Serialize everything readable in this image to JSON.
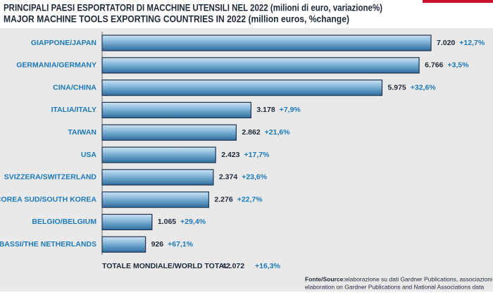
{
  "chart_data": {
    "type": "hbar",
    "title": "PRINCIPALI PAESI ESPORTATORI DI MACCHINE UTENSILI NEL 2022 (milioni di euro, variazione%)",
    "subtitle": "MAJOR MACHINE TOOLS EXPORTING COUNTRIES IN 2022 (million euros, %change)",
    "categories": [
      "GIAPPONE/JAPAN",
      "GERMANIA/GERMANY",
      "CINA/CHINA",
      "ITALIA/ITALY",
      "TAIWAN",
      "USA",
      "SVIZZERA/SWITZERLAND",
      "COREA SUD/SOUTH KOREA",
      "BELGIO/BELGIUM",
      "PAESI BASSI/THE NETHERLANDS"
    ],
    "values": [
      7020,
      6766,
      5975,
      3178,
      2862,
      2423,
      2374,
      2276,
      1065,
      926
    ],
    "value_labels": [
      "7.020",
      "6.766",
      "5.975",
      "3.178",
      "2.862",
      "2.423",
      "2.374",
      "2.276",
      "1.065",
      "926"
    ],
    "change_labels": [
      "+12,7%",
      "+3,5%",
      "+32,6%",
      "+7,9%",
      "+21,6%",
      "+17,7%",
      "+23,6%",
      "+22,7%",
      "+29,4%",
      "+67,1%"
    ],
    "color": "#5b9bc8",
    "total": {
      "label": "TOTALE MONDIALE/WORLD TOTAL:",
      "value": "42.072",
      "change": "+16,3%"
    },
    "source": {
      "label": "Fonte/Source:",
      "line1": "elaborazione su dati Gardner Publications, associazioni nazionali/",
      "line2": "elaboration on Gardner Publications and National Associations data"
    }
  }
}
